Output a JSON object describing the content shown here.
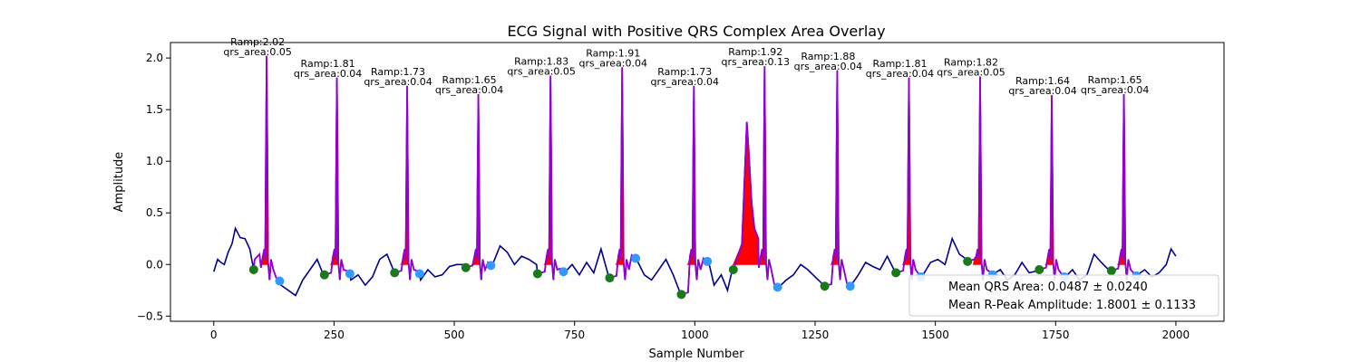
{
  "chart_data": {
    "type": "line",
    "title": "ECG Signal with Positive QRS Complex Area Overlay",
    "xlabel": "Sample Number",
    "ylabel": "Amplitude",
    "xlim": [
      -90,
      2100
    ],
    "ylim": [
      -0.55,
      2.15
    ],
    "xticks": [
      0,
      250,
      500,
      750,
      1000,
      1250,
      1500,
      1750,
      2000
    ],
    "yticks": [
      -0.5,
      0.0,
      0.5,
      1.0,
      1.5,
      2.0
    ],
    "ytick_labels": [
      "−0.5",
      "0.0",
      "0.5",
      "1.0",
      "1.5",
      "2.0"
    ],
    "grid": false,
    "legend_position": "lower-right",
    "legend": [
      "Mean QRS Area: 0.0487 ± 0.0240",
      "Mean R-Peak Amplitude: 1.8001 ± 0.1133"
    ],
    "colors": {
      "signal": "#00008b",
      "qrs_segment": "#9400d3",
      "qrs_area": "#ff0000",
      "onset_marker": "#1a7a1a",
      "offset_marker": "#3399ff"
    },
    "beats": [
      {
        "r_x": 110,
        "ramp": 2.02,
        "area": 0.05,
        "ramp_label": "Ramp:2.02",
        "area_label": "qrs_area:0.05",
        "onset": [
          83,
          -0.05
        ],
        "offset": [
          137,
          -0.16
        ]
      },
      {
        "r_x": 256,
        "ramp": 1.81,
        "area": 0.04,
        "ramp_label": "Ramp:1.81",
        "area_label": "qrs_area:0.04",
        "onset": [
          230,
          -0.1
        ],
        "offset": [
          283,
          -0.09
        ]
      },
      {
        "r_x": 402,
        "ramp": 1.73,
        "area": 0.04,
        "ramp_label": "Ramp:1.73",
        "area_label": "qrs_area:0.04",
        "onset": [
          376,
          -0.08
        ],
        "offset": [
          428,
          -0.09
        ]
      },
      {
        "r_x": 550,
        "ramp": 1.65,
        "area": 0.04,
        "ramp_label": "Ramp:1.65",
        "area_label": "qrs_area:0.04",
        "onset": [
          524,
          -0.03
        ],
        "offset": [
          576,
          -0.01
        ]
      },
      {
        "r_x": 700,
        "ramp": 1.83,
        "area": 0.05,
        "ramp_label": "Ramp:1.83",
        "area_label": "qrs_area:0.05",
        "onset": [
          673,
          -0.09
        ],
        "offset": [
          727,
          -0.07
        ]
      },
      {
        "r_x": 849,
        "ramp": 1.91,
        "area": 0.04,
        "ramp_label": "Ramp:1.91",
        "area_label": "qrs_area:0.04",
        "onset": [
          823,
          -0.13
        ],
        "offset": [
          877,
          0.06
        ]
      },
      {
        "r_x": 998,
        "ramp": 1.73,
        "area": 0.04,
        "ramp_label": "Ramp:1.73",
        "area_label": "qrs_area:0.04",
        "onset": [
          972,
          -0.29
        ],
        "offset": [
          1026,
          0.03
        ]
      },
      {
        "r_x": 1145,
        "ramp": 1.92,
        "area": 0.13,
        "ramp_label": "Ramp:1.92",
        "area_label": "qrs_area:0.13",
        "onset": [
          1080,
          -0.05
        ],
        "offset": [
          1172,
          -0.22
        ]
      },
      {
        "r_x": 1296,
        "ramp": 1.88,
        "area": 0.04,
        "ramp_label": "Ramp:1.88",
        "area_label": "qrs_area:0.04",
        "onset": [
          1270,
          -0.21
        ],
        "offset": [
          1323,
          -0.21
        ]
      },
      {
        "r_x": 1445,
        "ramp": 1.81,
        "area": 0.04,
        "ramp_label": "Ramp:1.81",
        "area_label": "qrs_area:0.04",
        "onset": [
          1418,
          -0.08
        ],
        "offset": [
          1470,
          -0.12
        ]
      },
      {
        "r_x": 1593,
        "ramp": 1.82,
        "area": 0.05,
        "ramp_label": "Ramp:1.82",
        "area_label": "qrs_area:0.05",
        "onset": [
          1567,
          0.03
        ],
        "offset": [
          1619,
          -0.1
        ]
      },
      {
        "r_x": 1742,
        "ramp": 1.64,
        "area": 0.04,
        "ramp_label": "Ramp:1.64",
        "area_label": "qrs_area:0.04",
        "onset": [
          1716,
          -0.05
        ],
        "offset": [
          1768,
          -0.12
        ]
      },
      {
        "r_x": 1892,
        "ramp": 1.65,
        "area": 0.04,
        "ramp_label": "Ramp:1.65",
        "area_label": "qrs_area:0.04",
        "onset": [
          1866,
          -0.06
        ],
        "offset": [
          1918,
          -0.11
        ]
      }
    ],
    "baseline_x": [
      0,
      8,
      15,
      22,
      30,
      38,
      45,
      55,
      65,
      75,
      85,
      95,
      140,
      155,
      170,
      185,
      200,
      215,
      228,
      285,
      300,
      315,
      330,
      345,
      360,
      374,
      430,
      445,
      460,
      475,
      490,
      505,
      522,
      578,
      595,
      610,
      625,
      640,
      655,
      671,
      729,
      745,
      760,
      775,
      790,
      805,
      821,
      879,
      895,
      910,
      925,
      940,
      955,
      970,
      1028,
      1040,
      1055,
      1068,
      1078,
      1174,
      1190,
      1205,
      1220,
      1235,
      1250,
      1268,
      1325,
      1340,
      1355,
      1370,
      1385,
      1400,
      1416,
      1472,
      1490,
      1505,
      1520,
      1535,
      1550,
      1565,
      1621,
      1635,
      1650,
      1665,
      1680,
      1695,
      1714,
      1770,
      1785,
      1800,
      1815,
      1830,
      1845,
      1864,
      1920,
      1935,
      1950,
      1965,
      1980,
      1990,
      2000
    ],
    "baseline_y": [
      -0.07,
      0.05,
      0.02,
      0.0,
      0.12,
      0.2,
      0.35,
      0.26,
      0.25,
      0.15,
      0.05,
      0.1,
      -0.2,
      -0.25,
      -0.3,
      -0.15,
      -0.05,
      0.05,
      -0.1,
      -0.15,
      -0.1,
      -0.2,
      -0.12,
      0.05,
      0.1,
      -0.06,
      -0.15,
      -0.05,
      -0.12,
      -0.1,
      -0.02,
      0.0,
      0.0,
      -0.02,
      0.18,
      0.12,
      0.0,
      0.08,
      0.05,
      0.0,
      -0.08,
      0.0,
      -0.1,
      0.02,
      -0.08,
      0.15,
      -0.12,
      0.05,
      -0.1,
      -0.15,
      -0.05,
      0.05,
      -0.1,
      -0.28,
      0.04,
      -0.2,
      -0.1,
      -0.25,
      -0.05,
      -0.22,
      -0.15,
      -0.1,
      0.0,
      -0.05,
      -0.12,
      -0.2,
      -0.2,
      -0.1,
      0.02,
      -0.02,
      -0.05,
      0.08,
      -0.07,
      -0.12,
      0.02,
      0.05,
      0.0,
      0.25,
      0.1,
      0.05,
      -0.09,
      -0.05,
      -0.15,
      -0.1,
      0.02,
      -0.08,
      -0.06,
      -0.12,
      -0.05,
      -0.15,
      -0.1,
      0.1,
      0.02,
      -0.07,
      -0.1,
      -0.05,
      -0.12,
      -0.08,
      0.0,
      0.15,
      0.08
    ],
    "secondary_peak": {
      "x": 1108,
      "y": 1.38
    }
  }
}
